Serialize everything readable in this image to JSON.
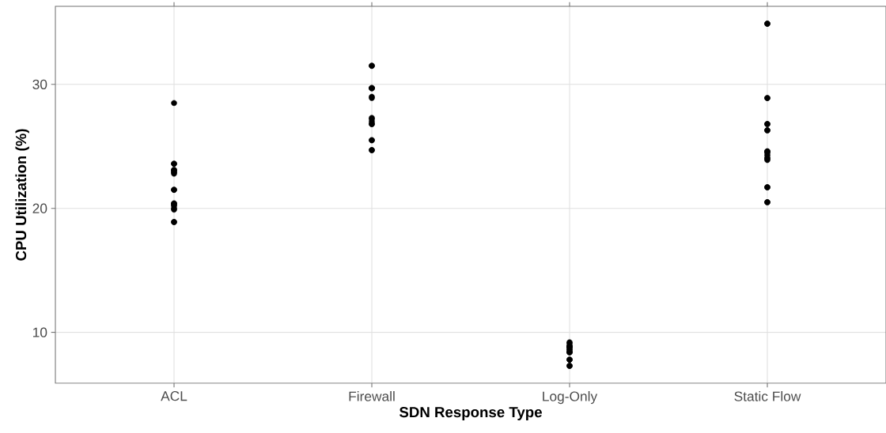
{
  "chart_data": {
    "type": "scatter",
    "xlabel": "SDN Response Type",
    "ylabel": "CPU Utilization (%)",
    "categories": [
      "ACL",
      "Firewall",
      "Log-Only",
      "Static Flow"
    ],
    "ylim": [
      5.9,
      36.3
    ],
    "yticks": [
      10,
      20,
      30
    ],
    "grid": true,
    "series": [
      {
        "color": "#000000",
        "x": [
          "ACL",
          "ACL",
          "ACL",
          "ACL",
          "ACL",
          "ACL",
          "ACL",
          "ACL",
          "ACL",
          "ACL",
          "ACL",
          "ACL",
          "ACL",
          "ACL",
          "ACL",
          "ACL",
          "ACL",
          "ACL",
          "Firewall",
          "Firewall",
          "Firewall",
          "Firewall",
          "Firewall",
          "Firewall",
          "Firewall",
          "Firewall",
          "Firewall",
          "Firewall",
          "Firewall",
          "Firewall",
          "Firewall",
          "Firewall",
          "Firewall",
          "Firewall",
          "Firewall",
          "Log-Only",
          "Log-Only",
          "Log-Only",
          "Log-Only",
          "Log-Only",
          "Log-Only",
          "Log-Only",
          "Log-Only",
          "Log-Only",
          "Log-Only",
          "Log-Only",
          "Log-Only",
          "Log-Only",
          "Log-Only",
          "Log-Only",
          "Log-Only",
          "Static Flow",
          "Static Flow",
          "Static Flow",
          "Static Flow",
          "Static Flow",
          "Static Flow",
          "Static Flow",
          "Static Flow",
          "Static Flow",
          "Static Flow",
          "Static Flow",
          "Static Flow",
          "Static Flow",
          "Static Flow",
          "Static Flow",
          "Static Flow",
          "Static Flow",
          "Static Flow",
          "Static Flow"
        ],
        "values": [
          28.5,
          23.6,
          22.8,
          23.6,
          23.1,
          22.9,
          23.0,
          23.1,
          21.5,
          21.5,
          20.4,
          20.4,
          20.2,
          20.0,
          19.9,
          20.3,
          18.9,
          18.9,
          31.5,
          31.5,
          29.7,
          29.7,
          29.7,
          29.7,
          28.9,
          29.0,
          27.3,
          26.8,
          27.0,
          26.8,
          27.2,
          25.5,
          25.5,
          24.7,
          24.7,
          8.4,
          7.3,
          8.9,
          8.4,
          9.2,
          8.9,
          8.6,
          8.4,
          8.6,
          7.8,
          7.3,
          8.8,
          7.8,
          9.1,
          8.8,
          8.8,
          34.9,
          34.9,
          28.9,
          28.9,
          26.8,
          26.8,
          26.3,
          26.3,
          24.5,
          24.6,
          24.1,
          24.6,
          24.3,
          24.0,
          23.9,
          21.7,
          21.7,
          20.5,
          20.5
        ]
      }
    ]
  }
}
